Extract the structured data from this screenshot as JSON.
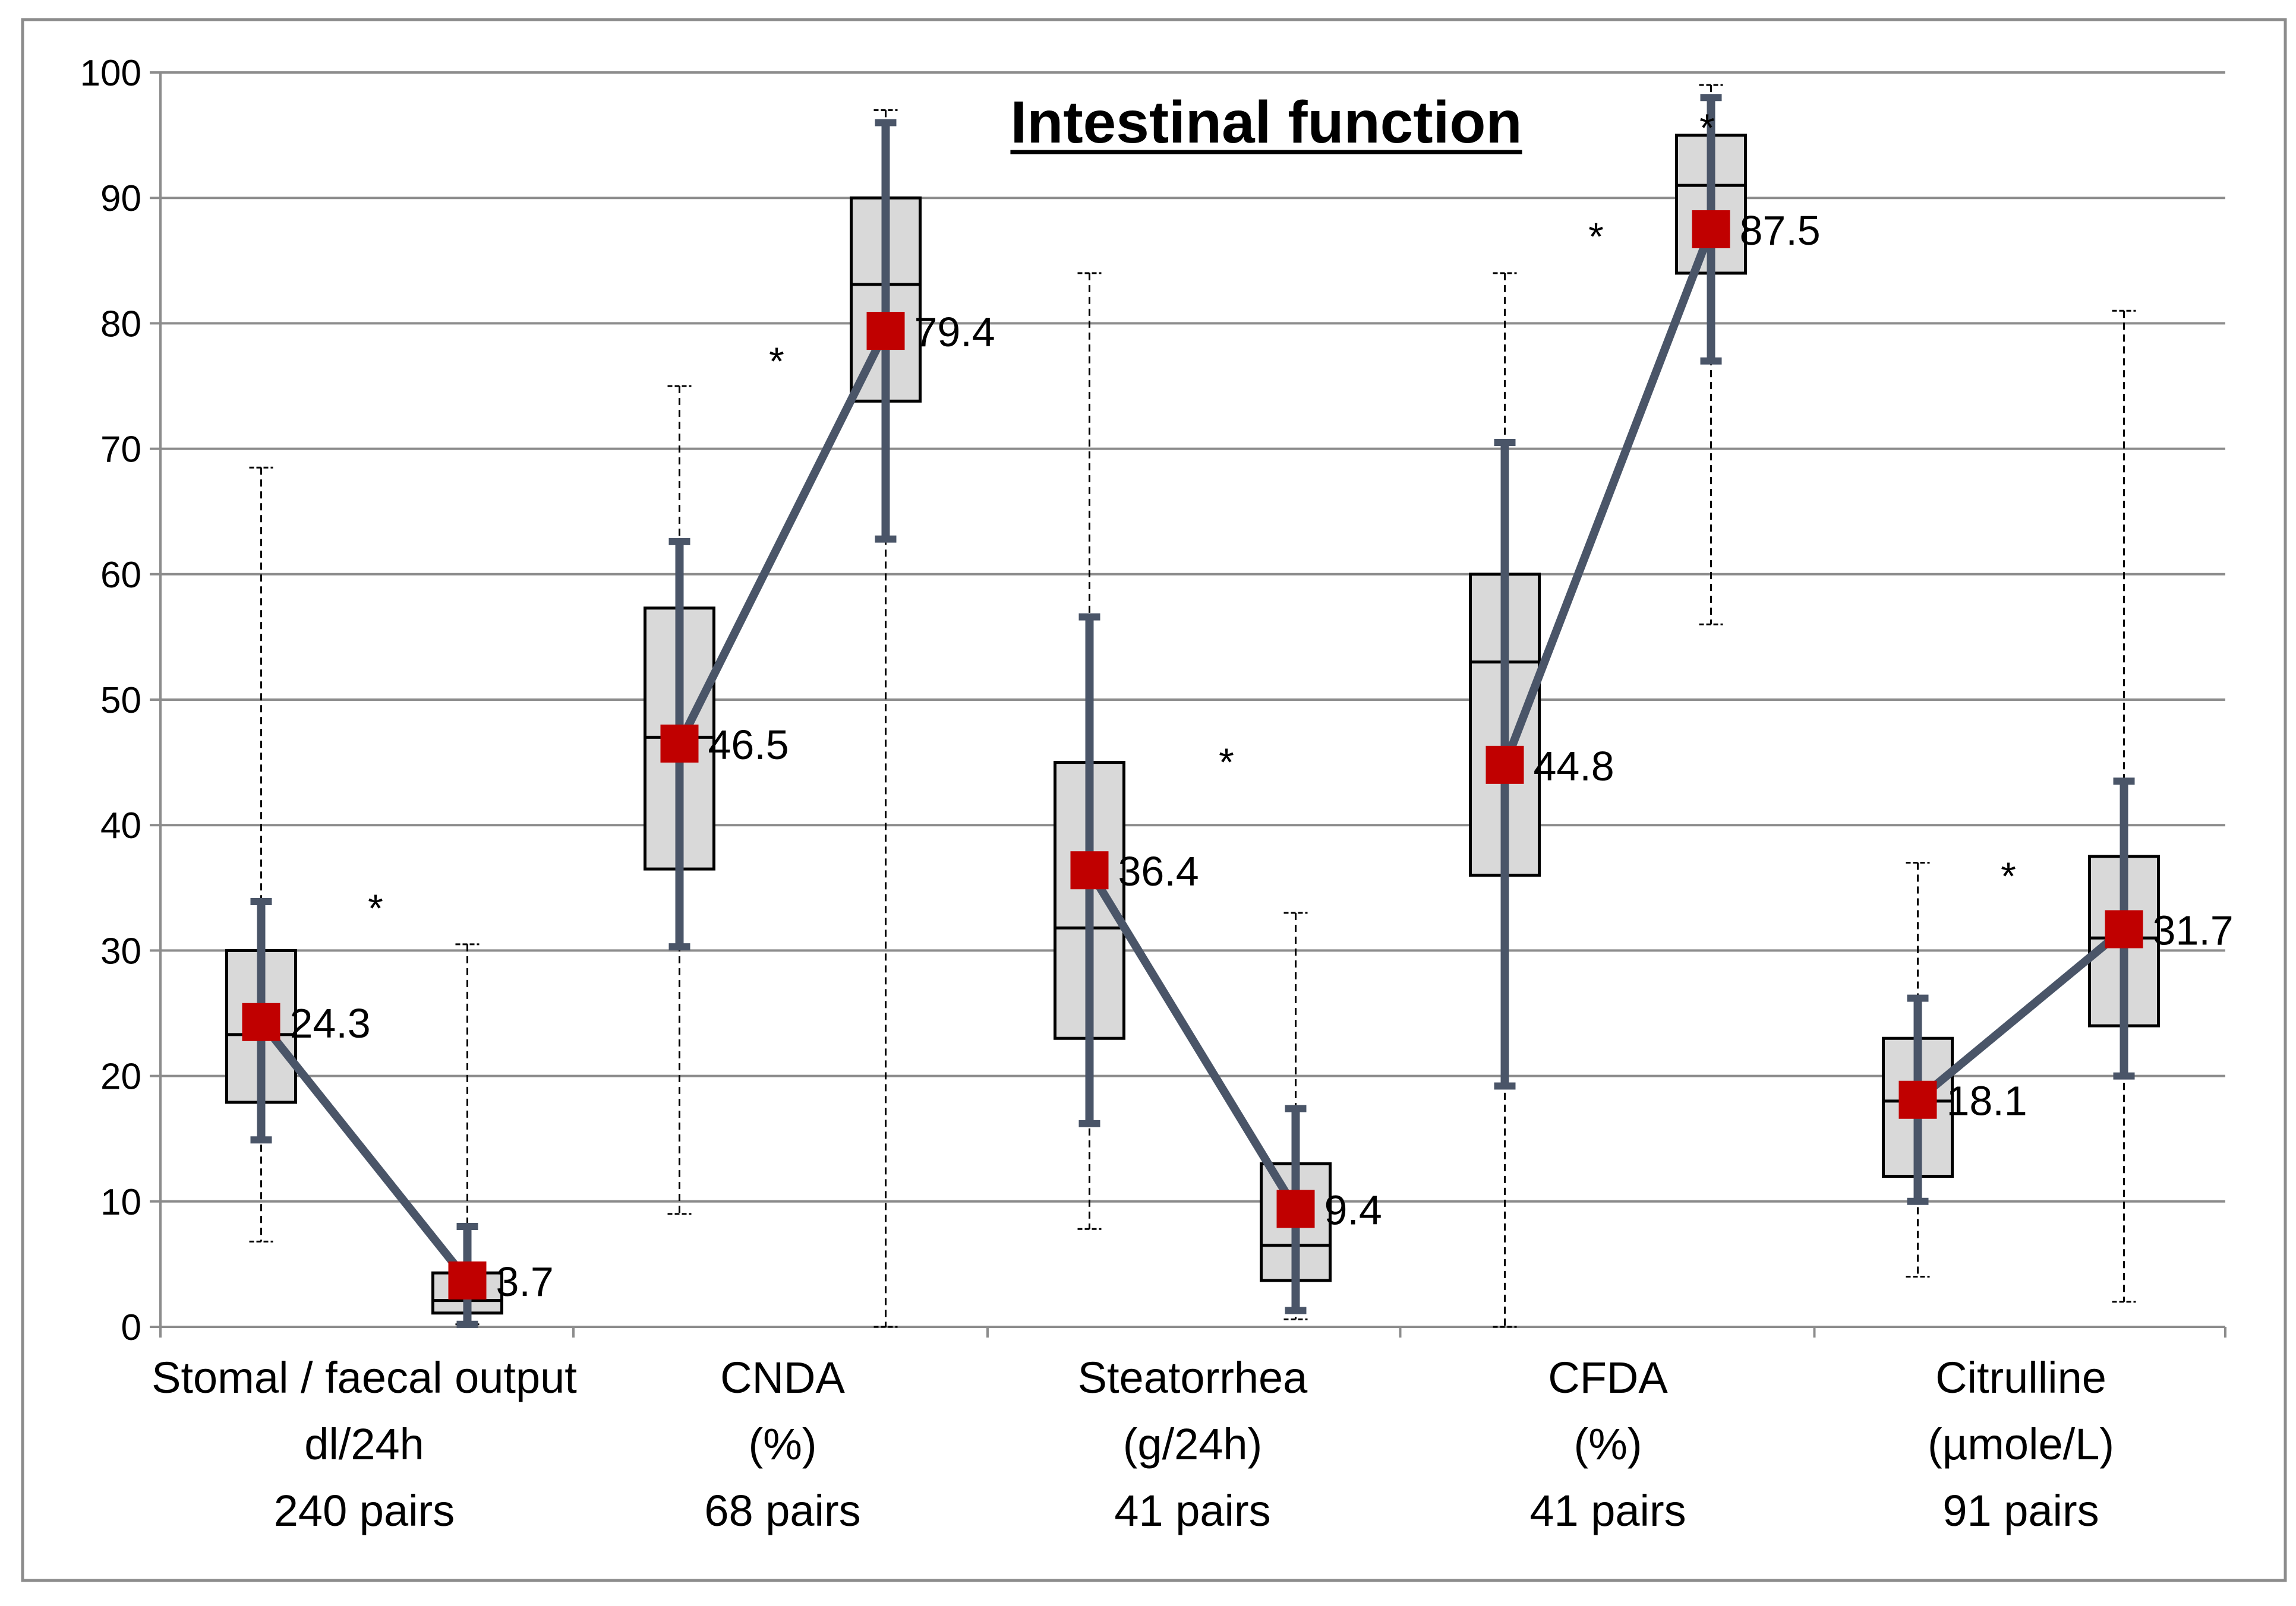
{
  "chart_data": {
    "type": "boxplot",
    "title": "Intestinal function",
    "xlabel": "",
    "ylabel": "",
    "ylim": [
      0,
      100
    ],
    "yticks": [
      0,
      10,
      20,
      30,
      40,
      50,
      60,
      70,
      80,
      90,
      100
    ],
    "grid": true,
    "categories": [
      {
        "label_lines": [
          "Stomal / faecal output",
          "dl/24h",
          "240 pairs"
        ],
        "significance": "*",
        "before": {
          "whisker_min": 6.8,
          "whisker_max": 68.5,
          "q1": 17.9,
          "median": 23.3,
          "q3": 30.0,
          "sd_low": 14.9,
          "sd_high": 33.9,
          "mean": 24.3,
          "mean_label": "24.3"
        },
        "after": {
          "whisker_min": 0.2,
          "whisker_max": 30.5,
          "q1": 1.1,
          "median": 2.1,
          "q3": 4.3,
          "sd_low": 0.2,
          "sd_high": 8.0,
          "mean": 3.7,
          "mean_label": "3.7"
        }
      },
      {
        "label_lines": [
          "CNDA",
          "(%)",
          "68 pairs"
        ],
        "significance": "*",
        "before": {
          "whisker_min": 9.0,
          "whisker_max": 75.0,
          "q1": 36.5,
          "median": 47.0,
          "q3": 57.3,
          "sd_low": 30.3,
          "sd_high": 62.6,
          "mean": 46.5,
          "mean_label": "46.5"
        },
        "after": {
          "whisker_min": 0.0,
          "whisker_max": 97.0,
          "q1": 73.8,
          "median": 83.1,
          "q3": 90.0,
          "sd_low": 62.8,
          "sd_high": 96.0,
          "mean": 79.4,
          "mean_label": "79.4"
        }
      },
      {
        "label_lines": [
          "Steatorrhea",
          "(g/24h)",
          "41 pairs"
        ],
        "significance": "*",
        "before": {
          "whisker_min": 7.8,
          "whisker_max": 84.0,
          "q1": 23.0,
          "median": 31.8,
          "q3": 45.0,
          "sd_low": 16.2,
          "sd_high": 56.6,
          "mean": 36.4,
          "mean_label": "36.4"
        },
        "after": {
          "whisker_min": 0.6,
          "whisker_max": 33.0,
          "q1": 3.7,
          "median": 6.5,
          "q3": 13.0,
          "sd_low": 1.3,
          "sd_high": 17.4,
          "mean": 9.4,
          "mean_label": "9.4"
        }
      },
      {
        "label_lines": [
          "CFDA",
          "(%)",
          "41 pairs"
        ],
        "significance": "*",
        "before": {
          "whisker_min": 0.0,
          "whisker_max": 84.0,
          "q1": 36.0,
          "median": 53.0,
          "q3": 60.0,
          "sd_low": 19.2,
          "sd_high": 70.5,
          "mean": 44.8,
          "mean_label": "44.8"
        },
        "after": {
          "whisker_min": 56.0,
          "whisker_max": 99.0,
          "q1": 84.0,
          "median": 91.0,
          "q3": 95.0,
          "sd_low": 77.0,
          "sd_high": 98.0,
          "mean": 87.5,
          "mean_label": "87.5"
        }
      },
      {
        "label_lines": [
          "Citrulline",
          "(µmole/L)",
          "91 pairs"
        ],
        "significance": "*",
        "before": {
          "whisker_min": 4.0,
          "whisker_max": 37.0,
          "q1": 12.0,
          "median": 18.0,
          "q3": 23.0,
          "sd_low": 10.0,
          "sd_high": 26.2,
          "mean": 18.1,
          "mean_label": "18.1"
        },
        "after": {
          "whisker_min": 2.0,
          "whisker_max": 81.0,
          "q1": 24.0,
          "median": 31.0,
          "q3": 37.5,
          "sd_low": 20.0,
          "sd_high": 43.5,
          "mean": 31.7,
          "mean_label": "31.7"
        }
      }
    ],
    "colors": {
      "box_fill": "#d9d9d9",
      "box_stroke": "#000000",
      "mean_marker": "#c00000",
      "connector": "#4a5568",
      "gridline": "#8c8c8c",
      "frame": "#8c8c8c"
    }
  }
}
